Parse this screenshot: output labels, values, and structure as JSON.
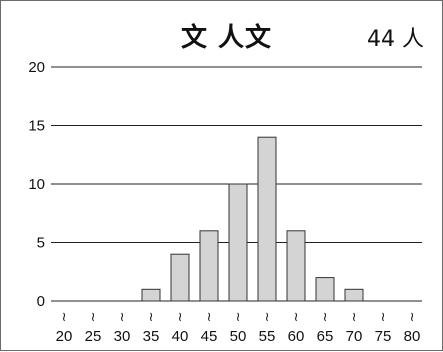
{
  "header": {
    "title": "文 人文",
    "count": "44 人"
  },
  "chart_data": {
    "type": "bar",
    "categories": [
      "20",
      "25",
      "30",
      "35",
      "40",
      "45",
      "50",
      "55",
      "60",
      "65",
      "70",
      "75",
      "80"
    ],
    "values": [
      0,
      0,
      0,
      1,
      4,
      6,
      10,
      14,
      6,
      2,
      1,
      0,
      0
    ],
    "yticks": [
      "0",
      "5",
      "10",
      "15",
      "20"
    ],
    "ylim": [
      0,
      20
    ],
    "grid": true,
    "colors": {
      "bar_fill": "#d4d4d4",
      "bar_stroke": "#333333",
      "grid": "#222222"
    }
  }
}
